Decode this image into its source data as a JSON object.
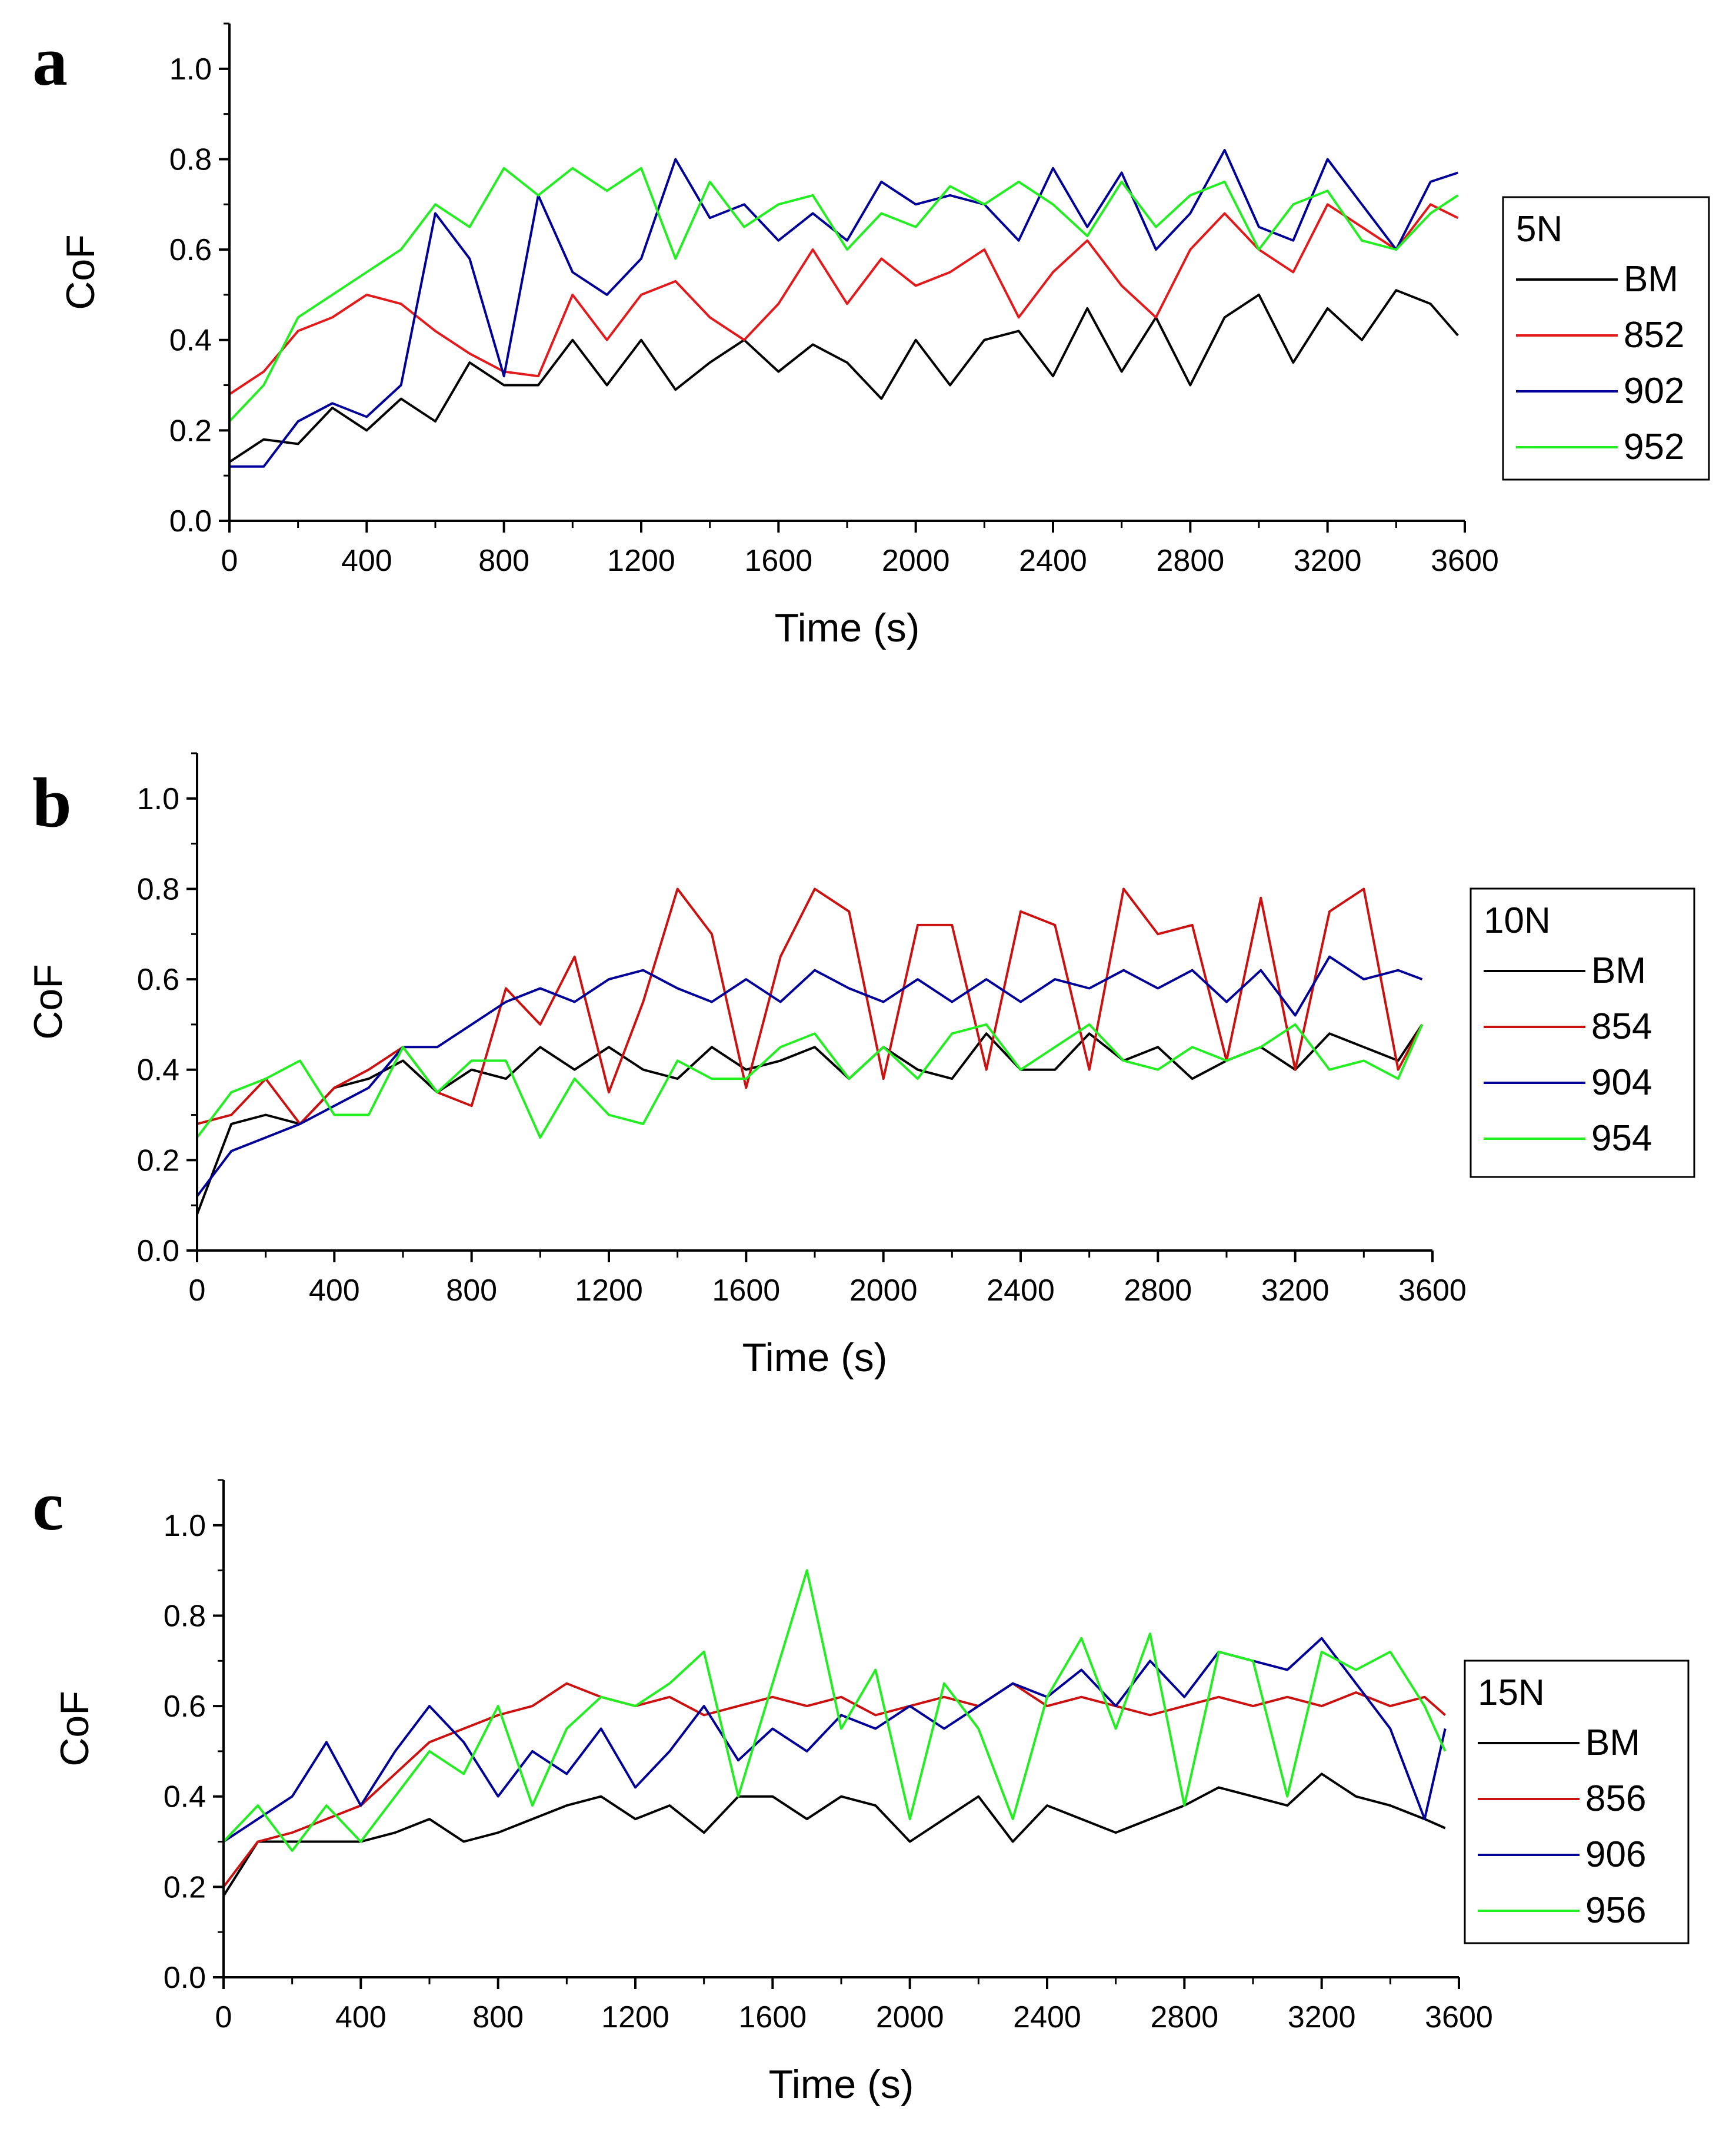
{
  "chart_data": [
    {
      "panel_letter": "a",
      "type": "line",
      "xlabel": "Time (s)",
      "ylabel": "CoF",
      "xlim": [
        0,
        3600
      ],
      "ylim": [
        0,
        1.1
      ],
      "xticks": [
        0,
        400,
        800,
        1200,
        1600,
        2000,
        2400,
        2800,
        3200,
        3600
      ],
      "yticks": [
        "0.0",
        "0.2",
        "0.4",
        "0.6",
        "0.8",
        "1.0"
      ],
      "legend_title": "5N",
      "legend_position": "right",
      "series": [
        {
          "name": "BM",
          "color": "#000000",
          "x": [
            0,
            100,
            200,
            300,
            400,
            500,
            600,
            700,
            800,
            900,
            1000,
            1100,
            1200,
            1300,
            1400,
            1500,
            1600,
            1700,
            1800,
            1900,
            2000,
            2100,
            2200,
            2300,
            2400,
            2500,
            2600,
            2700,
            2800,
            2900,
            3000,
            3100,
            3200,
            3300,
            3400,
            3500,
            3580
          ],
          "y": [
            0.13,
            0.18,
            0.17,
            0.25,
            0.2,
            0.27,
            0.22,
            0.35,
            0.3,
            0.3,
            0.4,
            0.3,
            0.4,
            0.29,
            0.35,
            0.4,
            0.33,
            0.39,
            0.35,
            0.27,
            0.4,
            0.3,
            0.4,
            0.42,
            0.32,
            0.47,
            0.33,
            0.45,
            0.3,
            0.45,
            0.5,
            0.35,
            0.47,
            0.4,
            0.51,
            0.48,
            0.41
          ]
        },
        {
          "name": "852",
          "color": "#e31a1c",
          "x": [
            0,
            100,
            200,
            300,
            400,
            500,
            600,
            700,
            800,
            900,
            1000,
            1100,
            1200,
            1300,
            1400,
            1500,
            1600,
            1700,
            1800,
            1900,
            2000,
            2100,
            2200,
            2300,
            2400,
            2500,
            2600,
            2700,
            2800,
            2900,
            3000,
            3100,
            3200,
            3300,
            3400,
            3500,
            3580
          ],
          "y": [
            0.28,
            0.33,
            0.42,
            0.45,
            0.5,
            0.48,
            0.42,
            0.37,
            0.33,
            0.32,
            0.5,
            0.4,
            0.5,
            0.53,
            0.45,
            0.4,
            0.48,
            0.6,
            0.48,
            0.58,
            0.52,
            0.55,
            0.6,
            0.45,
            0.55,
            0.62,
            0.52,
            0.45,
            0.6,
            0.68,
            0.6,
            0.55,
            0.7,
            0.65,
            0.6,
            0.7,
            0.67
          ]
        },
        {
          "name": "902",
          "color": "#000099",
          "x": [
            0,
            100,
            200,
            300,
            400,
            500,
            600,
            700,
            800,
            900,
            1000,
            1100,
            1200,
            1300,
            1400,
            1500,
            1600,
            1700,
            1800,
            1900,
            2000,
            2100,
            2200,
            2300,
            2400,
            2500,
            2600,
            2700,
            2800,
            2900,
            3000,
            3100,
            3200,
            3300,
            3400,
            3500,
            3580
          ],
          "y": [
            0.12,
            0.12,
            0.22,
            0.26,
            0.23,
            0.3,
            0.68,
            0.58,
            0.32,
            0.72,
            0.55,
            0.5,
            0.58,
            0.8,
            0.67,
            0.7,
            0.62,
            0.68,
            0.62,
            0.75,
            0.7,
            0.72,
            0.7,
            0.62,
            0.78,
            0.65,
            0.77,
            0.6,
            0.68,
            0.82,
            0.65,
            0.62,
            0.8,
            0.7,
            0.6,
            0.75,
            0.77
          ]
        },
        {
          "name": "952",
          "color": "#22ee22",
          "x": [
            0,
            100,
            200,
            300,
            400,
            500,
            600,
            700,
            800,
            900,
            1000,
            1100,
            1200,
            1300,
            1400,
            1500,
            1600,
            1700,
            1800,
            1900,
            2000,
            2100,
            2200,
            2300,
            2400,
            2500,
            2600,
            2700,
            2800,
            2900,
            3000,
            3100,
            3200,
            3300,
            3400,
            3500,
            3580
          ],
          "y": [
            0.22,
            0.3,
            0.45,
            0.5,
            0.55,
            0.6,
            0.7,
            0.65,
            0.78,
            0.72,
            0.78,
            0.73,
            0.78,
            0.58,
            0.75,
            0.65,
            0.7,
            0.72,
            0.6,
            0.68,
            0.65,
            0.74,
            0.7,
            0.75,
            0.7,
            0.63,
            0.75,
            0.65,
            0.72,
            0.75,
            0.6,
            0.7,
            0.73,
            0.62,
            0.6,
            0.68,
            0.72
          ]
        }
      ]
    },
    {
      "panel_letter": "b",
      "type": "line",
      "xlabel": "Time (s)",
      "ylabel": "CoF",
      "xlim": [
        0,
        3600
      ],
      "ylim": [
        0,
        1.1
      ],
      "xticks": [
        0,
        400,
        800,
        1200,
        1600,
        2000,
        2400,
        2800,
        3200,
        3600
      ],
      "yticks": [
        "0.0",
        "0.2",
        "0.4",
        "0.6",
        "0.8",
        "1.0"
      ],
      "legend_title": "10N",
      "legend_position": "right",
      "series": [
        {
          "name": "BM",
          "color": "#000000",
          "x": [
            0,
            100,
            200,
            300,
            400,
            500,
            600,
            700,
            800,
            900,
            1000,
            1100,
            1200,
            1300,
            1400,
            1500,
            1600,
            1700,
            1800,
            1900,
            2000,
            2100,
            2200,
            2300,
            2400,
            2500,
            2600,
            2700,
            2800,
            2900,
            3000,
            3100,
            3200,
            3300,
            3400,
            3500,
            3570
          ],
          "y": [
            0.08,
            0.28,
            0.3,
            0.28,
            0.36,
            0.38,
            0.42,
            0.35,
            0.4,
            0.38,
            0.45,
            0.4,
            0.45,
            0.4,
            0.38,
            0.45,
            0.4,
            0.42,
            0.45,
            0.38,
            0.45,
            0.4,
            0.38,
            0.48,
            0.4,
            0.4,
            0.48,
            0.42,
            0.45,
            0.38,
            0.42,
            0.45,
            0.4,
            0.48,
            0.45,
            0.42,
            0.5
          ]
        },
        {
          "name": "854",
          "color": "#cc1111",
          "x": [
            0,
            100,
            200,
            300,
            400,
            500,
            600,
            700,
            800,
            900,
            1000,
            1100,
            1200,
            1300,
            1400,
            1500,
            1600,
            1700,
            1800,
            1900,
            2000,
            2100,
            2200,
            2300,
            2400,
            2500,
            2600,
            2700,
            2800,
            2900,
            3000,
            3100,
            3200,
            3300,
            3400,
            3500,
            3570
          ],
          "y": [
            0.28,
            0.3,
            0.38,
            0.28,
            0.36,
            0.4,
            0.45,
            0.35,
            0.32,
            0.58,
            0.5,
            0.65,
            0.35,
            0.55,
            0.8,
            0.7,
            0.36,
            0.65,
            0.8,
            0.75,
            0.38,
            0.72,
            0.72,
            0.4,
            0.75,
            0.72,
            0.4,
            0.8,
            0.7,
            0.72,
            0.42,
            0.78,
            0.4,
            0.75,
            0.8,
            0.4,
            0.5
          ]
        },
        {
          "name": "904",
          "color": "#000099",
          "x": [
            0,
            100,
            200,
            300,
            400,
            500,
            600,
            700,
            800,
            900,
            1000,
            1100,
            1200,
            1300,
            1400,
            1500,
            1600,
            1700,
            1800,
            1900,
            2000,
            2100,
            2200,
            2300,
            2400,
            2500,
            2600,
            2700,
            2800,
            2900,
            3000,
            3100,
            3200,
            3300,
            3400,
            3500,
            3570
          ],
          "y": [
            0.12,
            0.22,
            0.25,
            0.28,
            0.32,
            0.36,
            0.45,
            0.45,
            0.5,
            0.55,
            0.58,
            0.55,
            0.6,
            0.62,
            0.58,
            0.55,
            0.6,
            0.55,
            0.62,
            0.58,
            0.55,
            0.6,
            0.55,
            0.6,
            0.55,
            0.6,
            0.58,
            0.62,
            0.58,
            0.62,
            0.55,
            0.62,
            0.52,
            0.65,
            0.6,
            0.62,
            0.6
          ]
        },
        {
          "name": "954",
          "color": "#22ee22",
          "x": [
            0,
            100,
            200,
            300,
            400,
            500,
            600,
            700,
            800,
            900,
            1000,
            1100,
            1200,
            1300,
            1400,
            1500,
            1600,
            1700,
            1800,
            1900,
            2000,
            2100,
            2200,
            2300,
            2400,
            2500,
            2600,
            2700,
            2800,
            2900,
            3000,
            3100,
            3200,
            3300,
            3400,
            3500,
            3570
          ],
          "y": [
            0.25,
            0.35,
            0.38,
            0.42,
            0.3,
            0.3,
            0.45,
            0.35,
            0.42,
            0.42,
            0.25,
            0.38,
            0.3,
            0.28,
            0.42,
            0.38,
            0.38,
            0.45,
            0.48,
            0.38,
            0.45,
            0.38,
            0.48,
            0.5,
            0.4,
            0.45,
            0.5,
            0.42,
            0.4,
            0.45,
            0.42,
            0.45,
            0.5,
            0.4,
            0.42,
            0.38,
            0.5
          ]
        }
      ]
    },
    {
      "panel_letter": "c",
      "type": "line",
      "xlabel": "Time (s)",
      "ylabel": "CoF",
      "xlim": [
        0,
        3600
      ],
      "ylim": [
        0,
        1.1
      ],
      "xticks": [
        0,
        400,
        800,
        1200,
        1600,
        2000,
        2400,
        2800,
        3200,
        3600
      ],
      "yticks": [
        "0.0",
        "0.2",
        "0.4",
        "0.6",
        "0.8",
        "1.0"
      ],
      "legend_title": "15N",
      "legend_position": "right",
      "series": [
        {
          "name": "BM",
          "color": "#000000",
          "x": [
            0,
            100,
            200,
            300,
            400,
            500,
            600,
            700,
            800,
            900,
            1000,
            1100,
            1200,
            1300,
            1400,
            1500,
            1600,
            1700,
            1800,
            1900,
            2000,
            2100,
            2200,
            2300,
            2400,
            2500,
            2600,
            2700,
            2800,
            2900,
            3000,
            3100,
            3200,
            3300,
            3400,
            3500,
            3560
          ],
          "y": [
            0.18,
            0.3,
            0.3,
            0.3,
            0.3,
            0.32,
            0.35,
            0.3,
            0.32,
            0.35,
            0.38,
            0.4,
            0.35,
            0.38,
            0.32,
            0.4,
            0.4,
            0.35,
            0.4,
            0.38,
            0.3,
            0.35,
            0.4,
            0.3,
            0.38,
            0.35,
            0.32,
            0.35,
            0.38,
            0.42,
            0.4,
            0.38,
            0.45,
            0.4,
            0.38,
            0.35,
            0.33
          ]
        },
        {
          "name": "856",
          "color": "#cc1111",
          "x": [
            0,
            100,
            200,
            300,
            400,
            500,
            600,
            700,
            800,
            900,
            1000,
            1100,
            1200,
            1300,
            1400,
            1500,
            1600,
            1700,
            1800,
            1900,
            2000,
            2100,
            2200,
            2300,
            2400,
            2500,
            2600,
            2700,
            2800,
            2900,
            3000,
            3100,
            3200,
            3300,
            3400,
            3500,
            3560
          ],
          "y": [
            0.2,
            0.3,
            0.32,
            0.35,
            0.38,
            0.45,
            0.52,
            0.55,
            0.58,
            0.6,
            0.65,
            0.62,
            0.6,
            0.62,
            0.58,
            0.6,
            0.62,
            0.6,
            0.62,
            0.58,
            0.6,
            0.62,
            0.6,
            0.65,
            0.6,
            0.62,
            0.6,
            0.58,
            0.6,
            0.62,
            0.6,
            0.62,
            0.6,
            0.63,
            0.6,
            0.62,
            0.58
          ]
        },
        {
          "name": "906",
          "color": "#000099",
          "x": [
            0,
            100,
            200,
            300,
            400,
            500,
            600,
            700,
            800,
            900,
            1000,
            1100,
            1200,
            1300,
            1400,
            1500,
            1600,
            1700,
            1800,
            1900,
            2000,
            2100,
            2200,
            2300,
            2400,
            2500,
            2600,
            2700,
            2800,
            2900,
            3000,
            3100,
            3200,
            3300,
            3400,
            3500,
            3560
          ],
          "y": [
            0.3,
            0.35,
            0.4,
            0.52,
            0.38,
            0.5,
            0.6,
            0.52,
            0.4,
            0.5,
            0.45,
            0.55,
            0.42,
            0.5,
            0.6,
            0.48,
            0.55,
            0.5,
            0.58,
            0.55,
            0.6,
            0.55,
            0.6,
            0.65,
            0.62,
            0.68,
            0.6,
            0.7,
            0.62,
            0.72,
            0.7,
            0.68,
            0.75,
            0.65,
            0.55,
            0.35,
            0.55
          ]
        },
        {
          "name": "956",
          "color": "#22ee22",
          "x": [
            0,
            100,
            200,
            300,
            400,
            500,
            600,
            700,
            800,
            900,
            1000,
            1100,
            1200,
            1300,
            1400,
            1500,
            1600,
            1700,
            1800,
            1900,
            2000,
            2100,
            2200,
            2300,
            2400,
            2500,
            2600,
            2700,
            2800,
            2900,
            3000,
            3100,
            3200,
            3300,
            3400,
            3500,
            3560
          ],
          "y": [
            0.3,
            0.38,
            0.28,
            0.38,
            0.3,
            0.4,
            0.5,
            0.45,
            0.6,
            0.38,
            0.55,
            0.62,
            0.6,
            0.65,
            0.72,
            0.4,
            0.65,
            0.9,
            0.55,
            0.68,
            0.35,
            0.65,
            0.55,
            0.35,
            0.62,
            0.75,
            0.55,
            0.76,
            0.38,
            0.72,
            0.7,
            0.4,
            0.72,
            0.68,
            0.72,
            0.6,
            0.5
          ]
        }
      ]
    }
  ]
}
